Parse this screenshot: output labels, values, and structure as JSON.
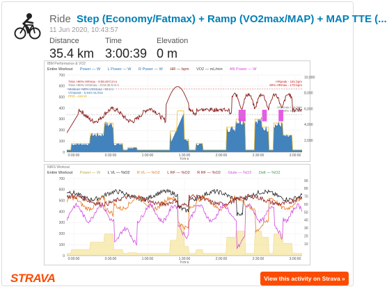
{
  "activity": {
    "sport": "Ride",
    "title": "Step (Economy/Fatmax) + Ramp (VO2max/MAP) + MAP TTE (...",
    "date": "11 Jun 2020, 10:43:57",
    "stats": [
      {
        "label": "Distance",
        "value": "35.4 km"
      },
      {
        "label": "Time",
        "value": "3:00:39"
      },
      {
        "label": "Elevation",
        "value": "0 m"
      }
    ]
  },
  "chart1": {
    "header": "IBM Performance & VO2",
    "legend": [
      "Entire Workout",
      "Power — W",
      "L Power — W",
      "R Power — W",
      "HR — bpm",
      "VO2 — mL/min",
      "AN Power — W"
    ],
    "annotations": [
      "Time >90% HRmax - 0:06:49 h:m:s",
      "Time >90% VO2max - 0:04:30 h:m:s",
      "Workout >90% VO2max - 10.1 s",
      "VO2peak - 5,640 mL/min",
      "PPO - 415 W"
    ],
    "right_annotations": [
      "HRpeak - 181 bpm",
      "90% HRmax - 170 bpm",
      "VO2max / mL/min",
      "90% VO2max"
    ],
    "y_left_ticks": [
      "700",
      "600",
      "500",
      "400",
      "300",
      "200",
      "100",
      "0"
    ],
    "y_right_ticks": [
      "10,000",
      "8,000",
      "6,000",
      "4,000",
      "2,000"
    ],
    "x_ticks": [
      "0:00:00",
      "0:30:00",
      "1:00:00",
      "1:30:00",
      "2:00:00",
      "2:30:00",
      "3:00:00"
    ],
    "x_label": "h:m:s"
  },
  "chart2": {
    "header": "NIRS Workout",
    "legend": [
      "Entire Workout",
      "Power — W",
      "L VL — %O2",
      "R VL — %O2",
      "L RF — %O2",
      "R RF — %O2",
      "Glute — %O2",
      "Delt — %O2"
    ],
    "y_left_ticks": [
      "700",
      "600",
      "500",
      "400",
      "300",
      "200",
      "100",
      "0"
    ],
    "y_right_ticks": [
      "90",
      "80",
      "70",
      "60",
      "50",
      "40",
      "30",
      "20",
      "10"
    ],
    "x_ticks": [
      "0:00:00",
      "0:30:00",
      "1:00:00",
      "1:30:00",
      "2:00:00",
      "2:30:00",
      "3:00:00"
    ],
    "x_label": "h:m:s"
  },
  "footer": {
    "logo": "STRAVA",
    "cta": "View this activity on Strava »"
  },
  "colors": {
    "strava_orange": "#fc4c02",
    "link_blue": "#007fb6",
    "power_fill": "#2e75b6",
    "hr_line": "#8b1a1a",
    "ppo_yellow": "#f0c020",
    "vo2_pink": "#e040e0"
  }
}
